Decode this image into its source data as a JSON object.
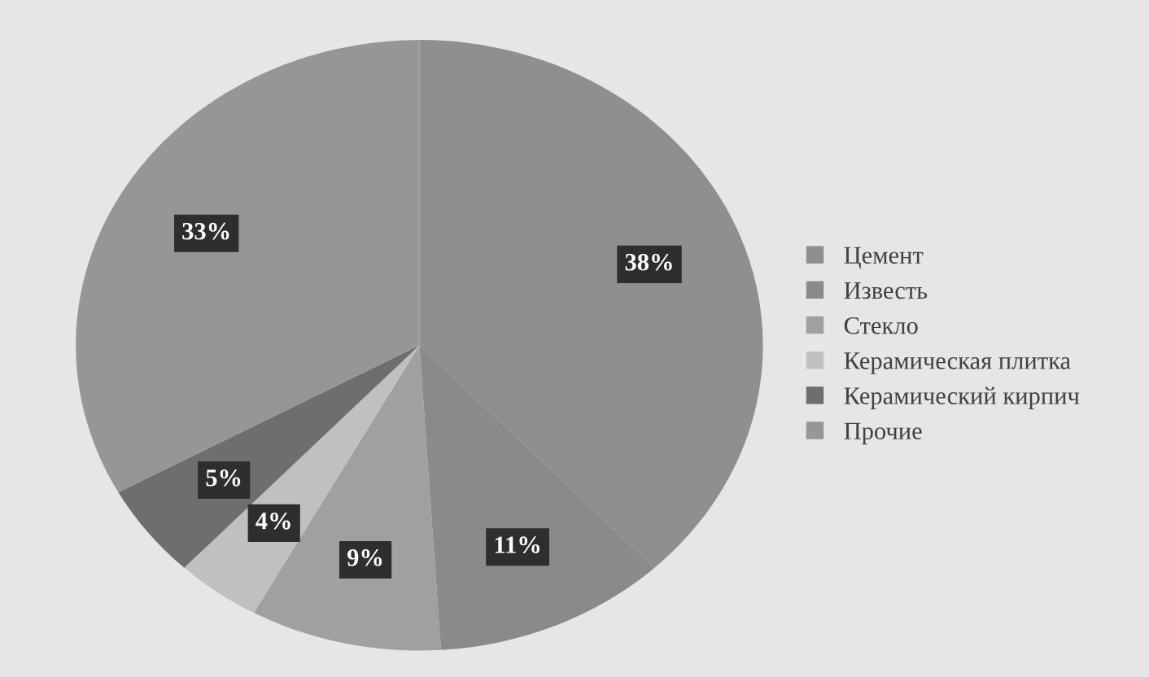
{
  "chart_data": {
    "type": "pie",
    "categories": [
      "Цемент",
      "Известь",
      "Стекло",
      "Керамическая плитка",
      "Керамический кирпич",
      "Прочие"
    ],
    "values": [
      38,
      11,
      9,
      4,
      5,
      33
    ],
    "colors": [
      "#8f8f8f",
      "#8a8a8a",
      "#a0a0a0",
      "#c0c0c0",
      "#6e6e6e",
      "#969696"
    ],
    "value_labels": [
      "38%",
      "11%",
      "9%",
      "4%",
      "5%",
      "33%"
    ],
    "legend": "right"
  }
}
